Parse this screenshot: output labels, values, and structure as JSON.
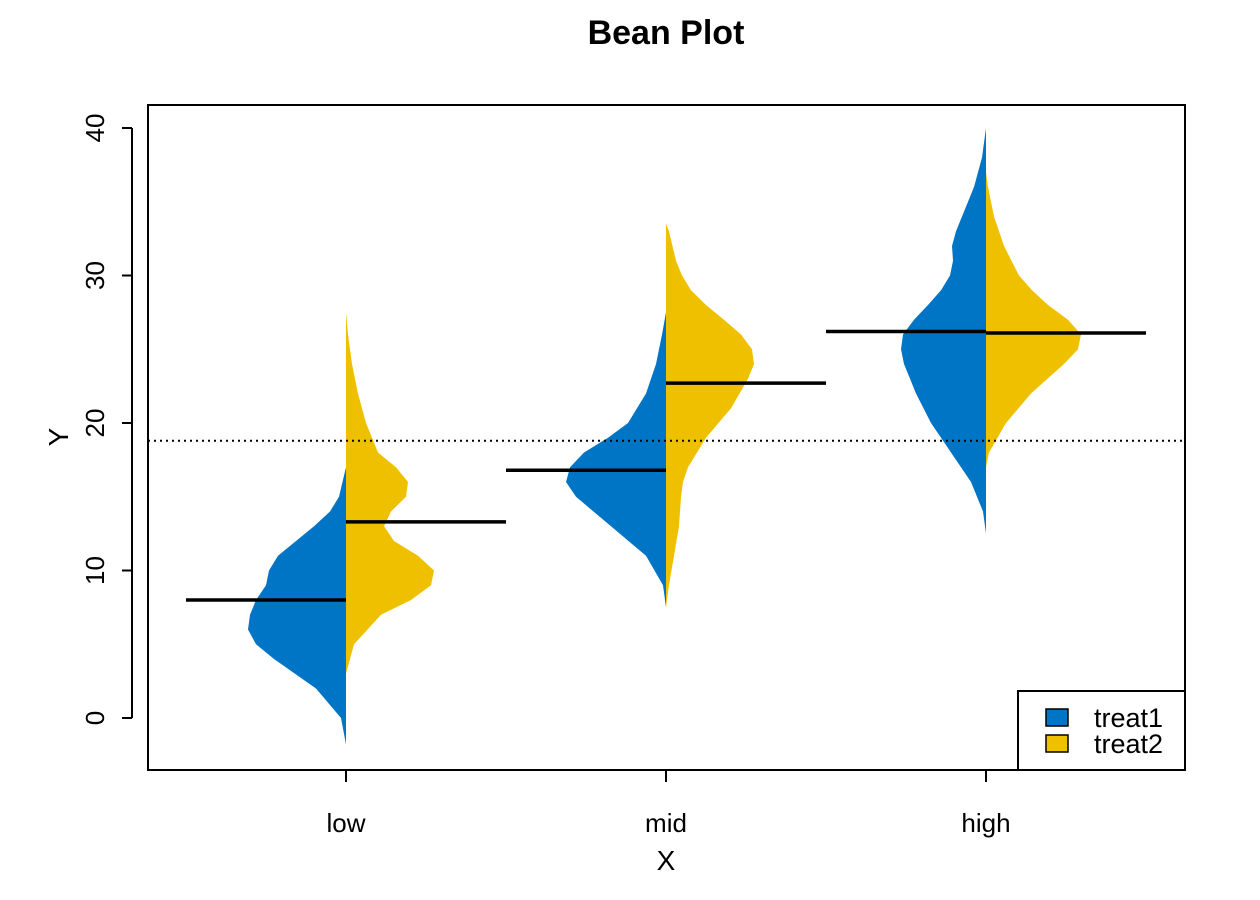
{
  "chart_data": {
    "type": "bean",
    "title": "Bean Plot",
    "xlabel": "X",
    "ylabel": "Y",
    "categories": [
      "low",
      "mid",
      "high"
    ],
    "ylim": [
      -3.5,
      40.5
    ],
    "yticks": [
      0,
      10,
      20,
      30,
      40
    ],
    "overall_mean": 18.8,
    "grid": false,
    "legend_position": "bottom-right",
    "series": [
      {
        "name": "treat1",
        "side": "left",
        "color": "#0075C6",
        "means": [
          8.0,
          16.8,
          26.2
        ],
        "density_profiles": [
          [
            [
              -1.8,
              0.0
            ],
            [
              0,
              0.05
            ],
            [
              2,
              0.3
            ],
            [
              4,
              0.72
            ],
            [
              5,
              0.9
            ],
            [
              6,
              0.98
            ],
            [
              7,
              0.96
            ],
            [
              8,
              0.9
            ],
            [
              9,
              0.8
            ],
            [
              10,
              0.77
            ],
            [
              11,
              0.68
            ],
            [
              12,
              0.5
            ],
            [
              13,
              0.32
            ],
            [
              14,
              0.16
            ],
            [
              15,
              0.07
            ],
            [
              17,
              0.0
            ]
          ],
          [
            [
              7.5,
              0.0
            ],
            [
              9,
              0.03
            ],
            [
              11,
              0.2
            ],
            [
              13,
              0.55
            ],
            [
              15,
              0.9
            ],
            [
              16,
              1.0
            ],
            [
              17,
              0.96
            ],
            [
              18,
              0.82
            ],
            [
              19,
              0.58
            ],
            [
              20,
              0.38
            ],
            [
              22,
              0.2
            ],
            [
              24,
              0.1
            ],
            [
              26,
              0.04
            ],
            [
              27.5,
              0.0
            ]
          ],
          [
            [
              12.5,
              0.0
            ],
            [
              14,
              0.03
            ],
            [
              16,
              0.15
            ],
            [
              18,
              0.35
            ],
            [
              20,
              0.55
            ],
            [
              22,
              0.7
            ],
            [
              24,
              0.82
            ],
            [
              25,
              0.85
            ],
            [
              26,
              0.83
            ],
            [
              27,
              0.72
            ],
            [
              28,
              0.58
            ],
            [
              29,
              0.45
            ],
            [
              30,
              0.36
            ],
            [
              31,
              0.33
            ],
            [
              32,
              0.34
            ],
            [
              33,
              0.3
            ],
            [
              34,
              0.24
            ],
            [
              36,
              0.12
            ],
            [
              38,
              0.04
            ],
            [
              40,
              0.0
            ]
          ]
        ]
      },
      {
        "name": "treat2",
        "side": "right",
        "color": "#EFC000",
        "means": [
          13.3,
          22.7,
          26.1
        ],
        "density_profiles": [
          [
            [
              3,
              0.0
            ],
            [
              5,
              0.08
            ],
            [
              7,
              0.35
            ],
            [
              8,
              0.65
            ],
            [
              9,
              0.85
            ],
            [
              10,
              0.88
            ],
            [
              11,
              0.72
            ],
            [
              12,
              0.48
            ],
            [
              13,
              0.38
            ],
            [
              14,
              0.45
            ],
            [
              15,
              0.6
            ],
            [
              16,
              0.62
            ],
            [
              17,
              0.5
            ],
            [
              18,
              0.32
            ],
            [
              20,
              0.2
            ],
            [
              22,
              0.12
            ],
            [
              24,
              0.06
            ],
            [
              26,
              0.02
            ],
            [
              27.5,
              0.0
            ]
          ],
          [
            [
              7.5,
              0.0
            ],
            [
              9,
              0.03
            ],
            [
              11,
              0.08
            ],
            [
              13,
              0.13
            ],
            [
              15,
              0.15
            ],
            [
              16,
              0.17
            ],
            [
              17,
              0.22
            ],
            [
              19,
              0.4
            ],
            [
              21,
              0.65
            ],
            [
              23,
              0.82
            ],
            [
              24,
              0.88
            ],
            [
              25,
              0.86
            ],
            [
              26,
              0.75
            ],
            [
              27,
              0.58
            ],
            [
              28,
              0.4
            ],
            [
              29,
              0.25
            ],
            [
              30,
              0.16
            ],
            [
              31,
              0.1
            ],
            [
              33,
              0.03
            ],
            [
              33.5,
              0.0
            ]
          ],
          [
            [
              17,
              0.0
            ],
            [
              18,
              0.03
            ],
            [
              20,
              0.2
            ],
            [
              22,
              0.45
            ],
            [
              24,
              0.78
            ],
            [
              25,
              0.92
            ],
            [
              26,
              0.95
            ],
            [
              27,
              0.82
            ],
            [
              28,
              0.62
            ],
            [
              29,
              0.46
            ],
            [
              30,
              0.33
            ],
            [
              32,
              0.18
            ],
            [
              34,
              0.08
            ],
            [
              36,
              0.02
            ],
            [
              37,
              0.0
            ]
          ]
        ]
      }
    ]
  }
}
